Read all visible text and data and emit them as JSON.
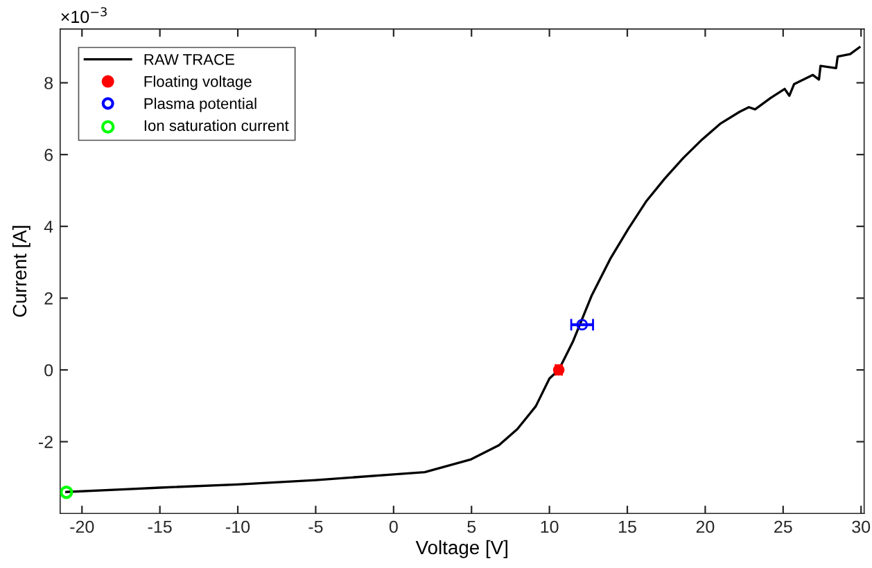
{
  "chart_data": {
    "type": "line",
    "xlabel": "Voltage [V]",
    "ylabel": "Current [A]",
    "annotations": [
      "×10$^{−3}$"
    ],
    "xlim": [
      -21.4,
      30.2
    ],
    "ylim": [
      -4,
      9.5
    ],
    "xticks": [
      -20,
      -15,
      -10,
      -5,
      0,
      5,
      10,
      15,
      20,
      25,
      30
    ],
    "yticks": [
      -2,
      0,
      2,
      4,
      6,
      8
    ],
    "grid": false,
    "legend": "top left",
    "series": [
      {
        "name": "RAW TRACE",
        "color": "#000000",
        "marker": "none",
        "x": [
          -21.0,
          -17,
          -15,
          -10,
          -7,
          -5,
          0,
          2,
          4.98,
          6.76,
          7.94,
          9.13,
          10.0,
          10.6,
          11.5,
          12.7,
          13.9,
          15.05,
          16.2,
          17.4,
          18.6,
          19.8,
          21.0,
          22.2,
          22.8,
          23.2,
          24.2,
          25.1,
          25.4,
          25.7,
          26.9,
          27.3,
          27.4,
          28.4,
          28.5,
          29.3,
          29.9
        ],
        "values": [
          -3.4,
          -3.32,
          -3.28,
          -3.19,
          -3.12,
          -3.07,
          -2.91,
          -2.85,
          -2.49,
          -2.1,
          -1.65,
          -1.01,
          -0.24,
          0,
          0.78,
          2.06,
          3.09,
          3.92,
          4.69,
          5.33,
          5.91,
          6.42,
          6.87,
          7.19,
          7.32,
          7.26,
          7.58,
          7.83,
          7.64,
          7.96,
          8.22,
          8.09,
          8.47,
          8.41,
          8.73,
          8.8,
          8.99
        ]
      },
      {
        "name": "Floating voltage",
        "type": "scatter",
        "color": "#ff0000",
        "marker": "circle",
        "x": [
          10.6
        ],
        "values": [
          0
        ],
        "xerrors": [
          0.2
        ]
      },
      {
        "name": "Plasma potential",
        "type": "scatter",
        "color": "#0000ff",
        "marker": "circle",
        "x": [
          12.1
        ],
        "values": [
          1.26
        ],
        "xerrors": [
          0.7
        ]
      },
      {
        "name": "Ion saturation current",
        "type": "scatter",
        "color": "#00ff00",
        "marker": "circle",
        "x": [
          -21.0
        ],
        "values": [
          -3.41
        ]
      }
    ]
  }
}
